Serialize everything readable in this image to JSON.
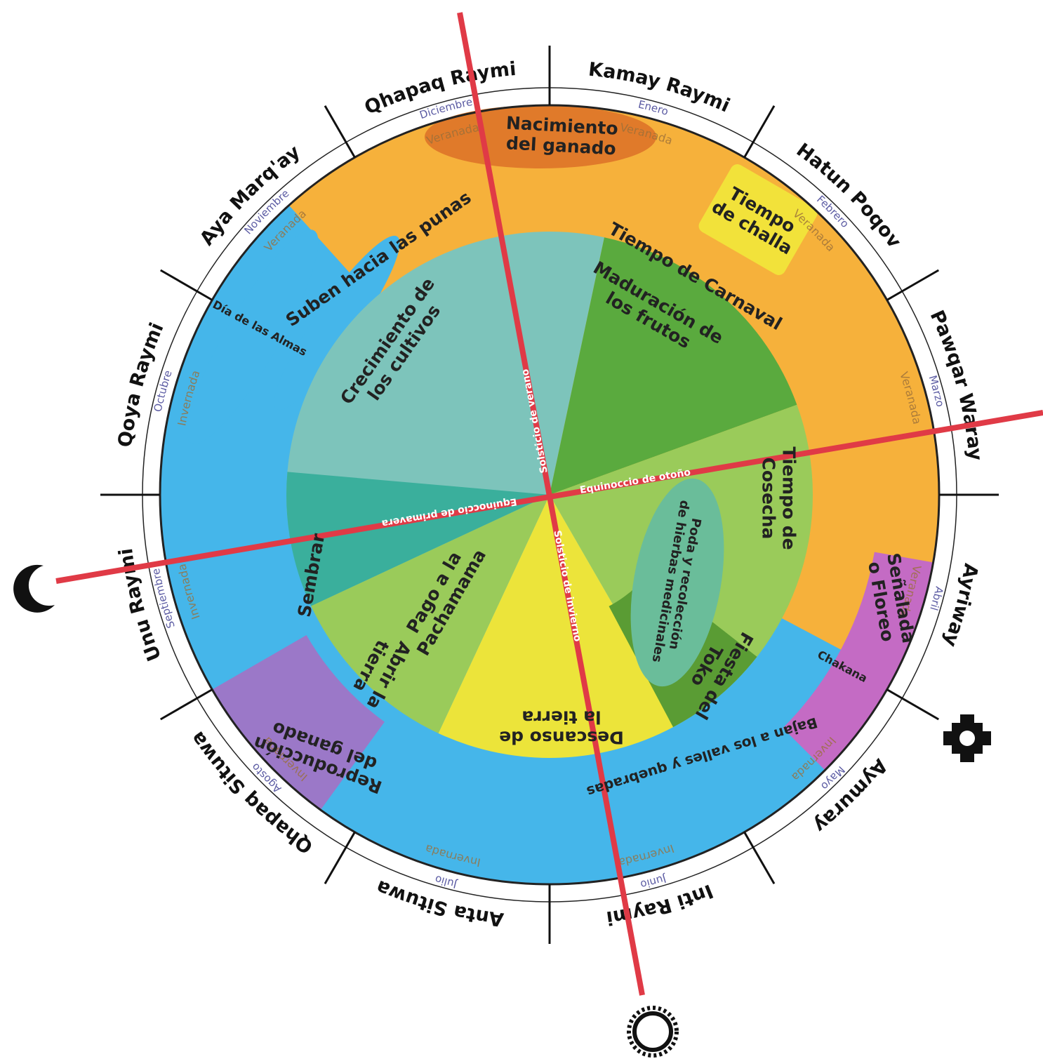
{
  "sectors": [
    {
      "name": "Kamay Raymi",
      "month": "Enero",
      "season": "Veranada"
    },
    {
      "name": "Hatun Poqov",
      "month": "Febrero",
      "season": "Veranada"
    },
    {
      "name": "Pawqar Waray",
      "month": "Marzo",
      "season": "Veranada"
    },
    {
      "name": "Ayriway",
      "month": "Abril",
      "season": "Veranada"
    },
    {
      "name": "Aymuray",
      "month": "Mayo",
      "season": "Invernada"
    },
    {
      "name": "Inti Raymi",
      "month": "Junio",
      "season": "Invernada"
    },
    {
      "name": "Anta Situwa",
      "month": "Julio",
      "season": "Invernada"
    },
    {
      "name": "Qhapaq Situwa",
      "month": "Agosto",
      "season": "Invernada"
    },
    {
      "name": "Unu Raymi",
      "month": "Septiembre",
      "season": "Invernada"
    },
    {
      "name": "Qoya Raymi",
      "month": "Octubre",
      "season": "Invernada"
    },
    {
      "name": "Aya Marq'ay",
      "month": "Noviembre",
      "season": "Veranada"
    },
    {
      "name": "Qhapaq Raymi",
      "month": "Diciembre",
      "season": "Veranada"
    }
  ],
  "labels": [
    {
      "lines": [
        "Nacimiento",
        "del ganado"
      ]
    },
    {
      "lines": [
        "Tiempo",
        "de challa"
      ]
    },
    {
      "lines": [
        "Tiempo de Carnaval"
      ]
    },
    {
      "lines": [
        "Suben hacia las punas"
      ]
    },
    {
      "lines": [
        "Día de las Almas"
      ]
    },
    {
      "lines": [
        "Crecimiento de",
        "los cultivos"
      ]
    },
    {
      "lines": [
        "Maduración de",
        "los frutos"
      ]
    },
    {
      "lines": [
        "Tiempo de",
        "Cosecha"
      ]
    },
    {
      "lines": [
        "Poda y recolección",
        "de hierbas medicinales"
      ]
    },
    {
      "lines": [
        "Fiesta del",
        "Toko"
      ]
    },
    {
      "lines": [
        "Señalada",
        "o Floreo"
      ]
    },
    {
      "lines": [
        "Chakana"
      ]
    },
    {
      "lines": [
        "Bajan a los valles y quebradas"
      ]
    },
    {
      "lines": [
        "Descanso de",
        "la tierra"
      ]
    },
    {
      "lines": [
        "Pago a la",
        "Pachamama"
      ]
    },
    {
      "lines": [
        "Abrir la",
        "tierra"
      ]
    },
    {
      "lines": [
        "Sembrar"
      ]
    },
    {
      "lines": [
        "Reproducción",
        "del ganado"
      ]
    }
  ],
  "axis_labels": [
    "Solsticio de verano",
    "Equinoccio de otoño",
    "Solsticio de invierno",
    "Equinoccio de primavera"
  ]
}
